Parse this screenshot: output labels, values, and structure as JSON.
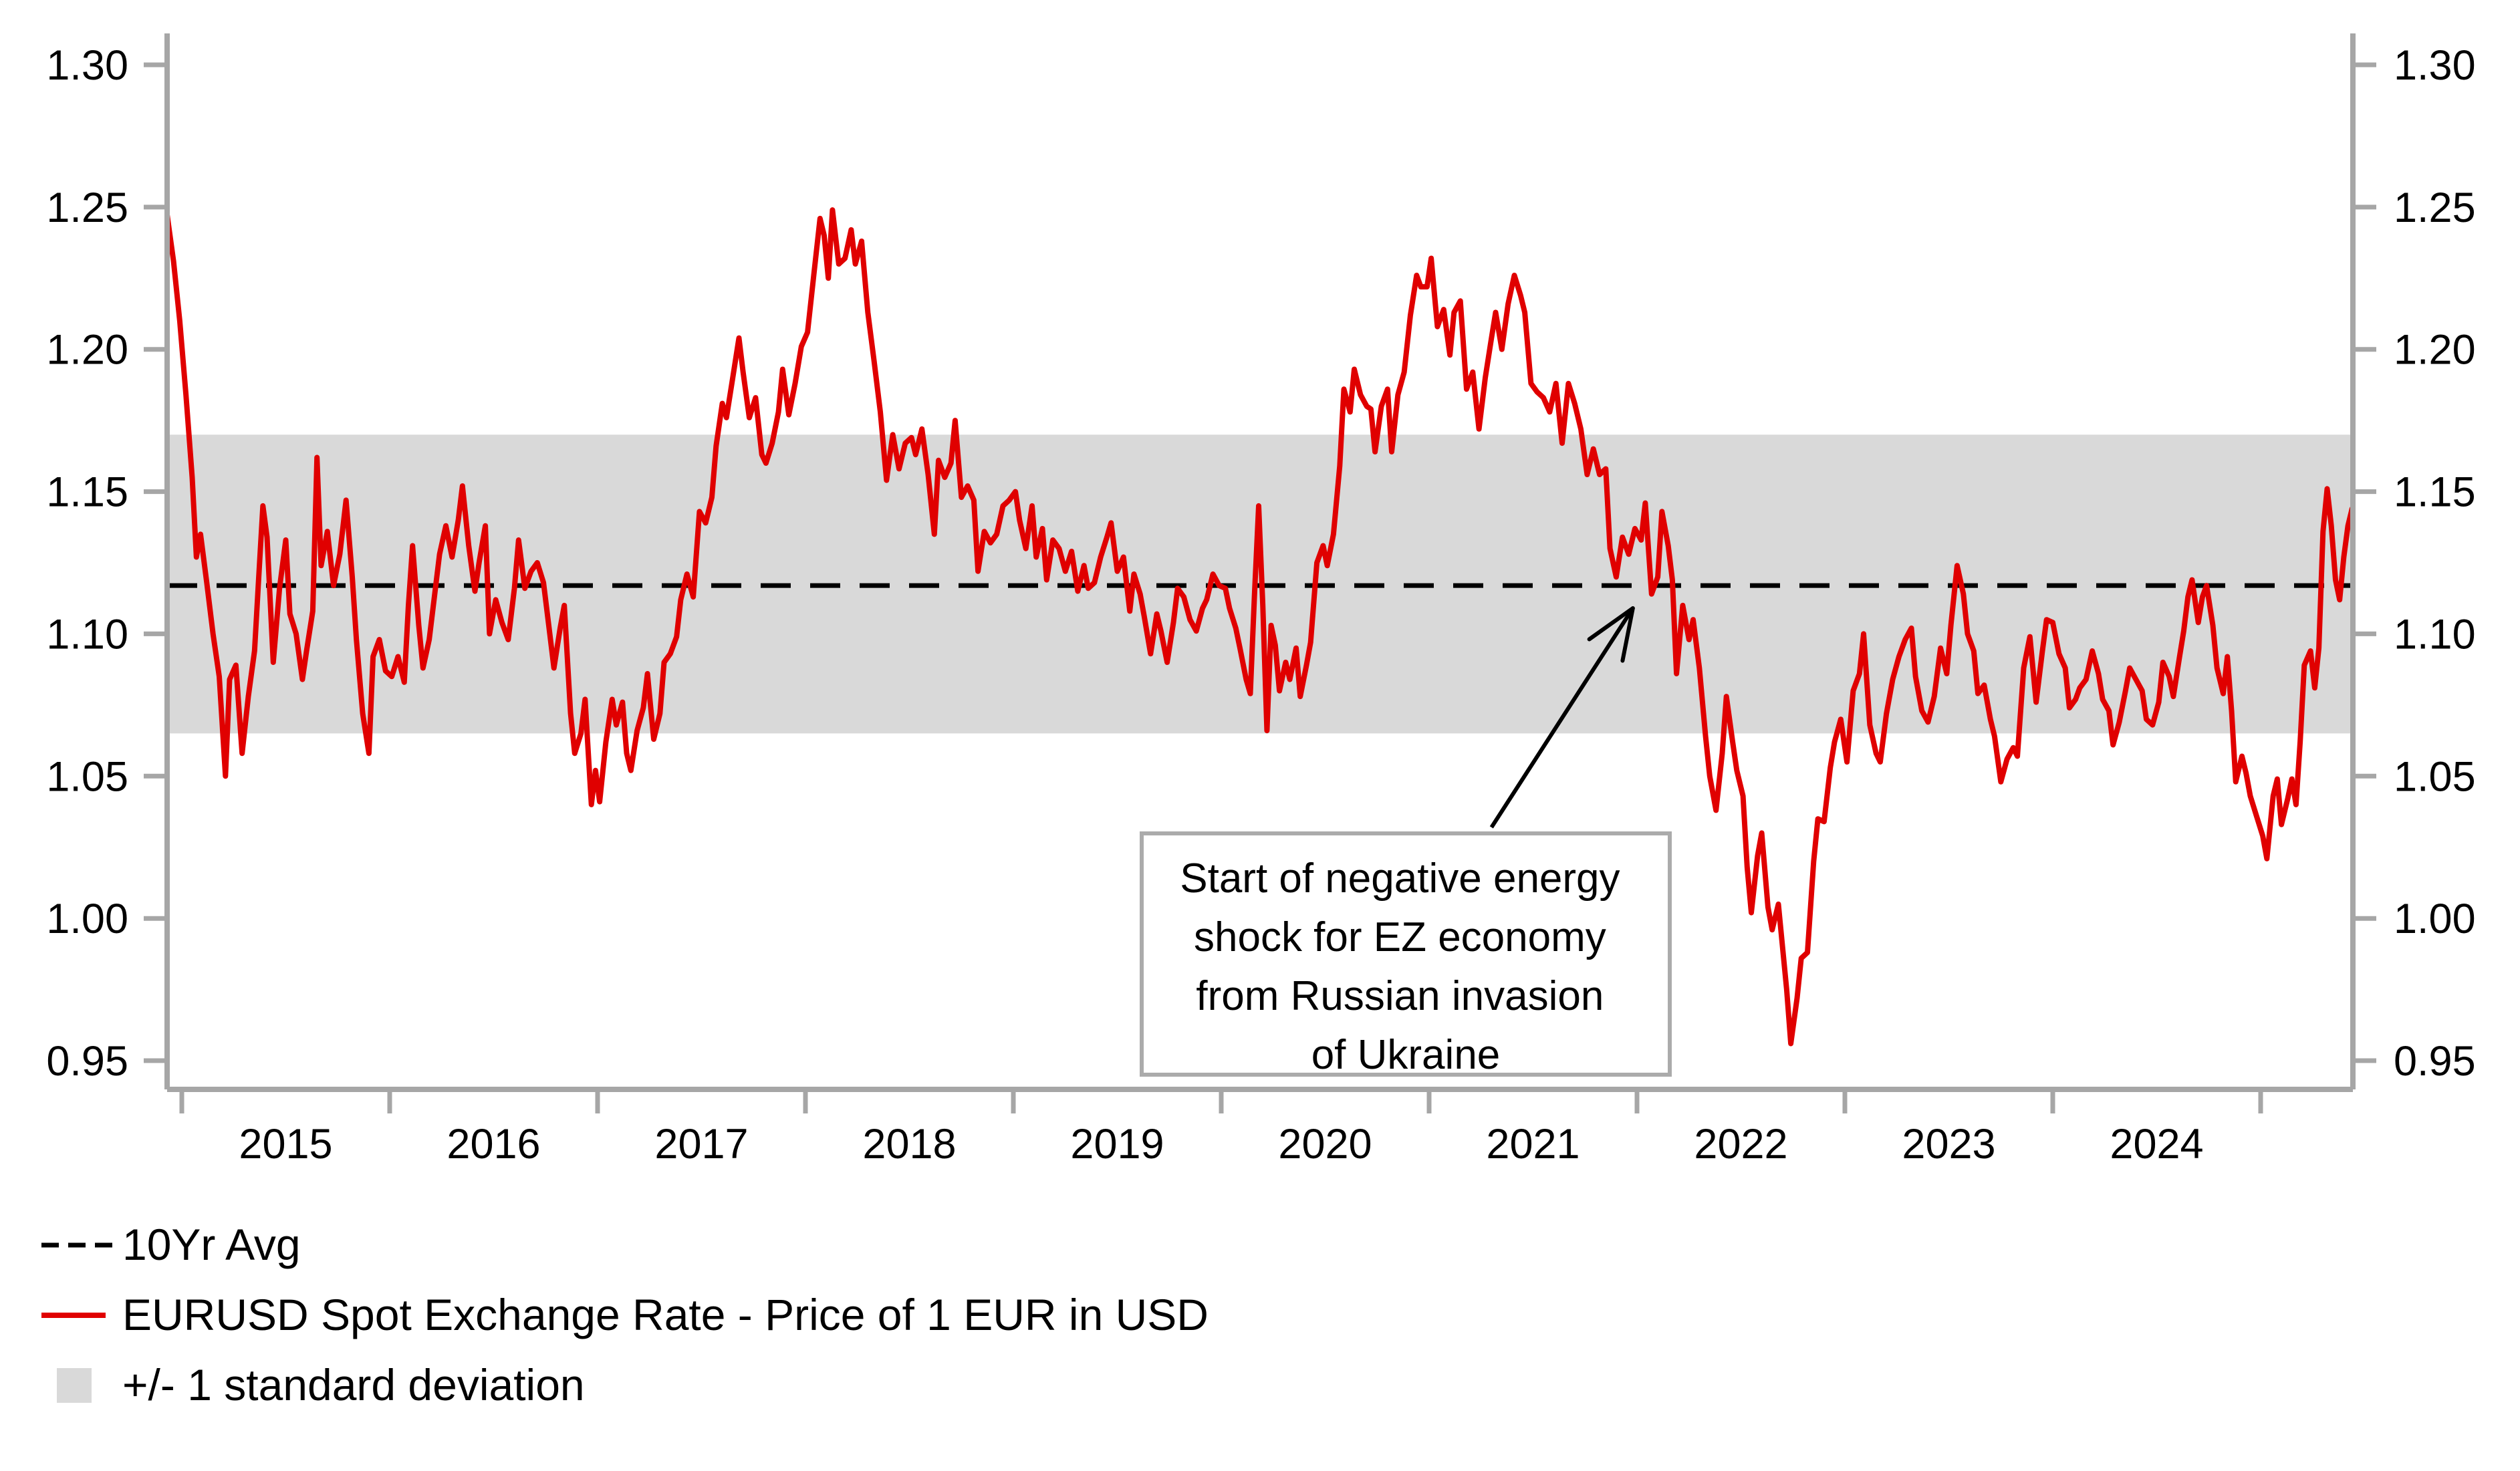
{
  "chart_data": {
    "type": "line",
    "title": "",
    "xlabel": "",
    "ylabel": "",
    "grid": false,
    "style": {
      "axis_color": "#A6A6A6",
      "text_color": "#000000",
      "background": "#FFFFFF",
      "annotation_box_border": "#ABABAB",
      "annotation_box_fill": "#FFFFFF",
      "arrow_color": "#000000"
    },
    "x_axis": {
      "range": [
        2014.93,
        2025.44
      ],
      "tick_years": [
        2015,
        2016,
        2017,
        2018,
        2019,
        2020,
        2021,
        2022,
        2023,
        2024,
        2025
      ],
      "year_labels": [
        "2015",
        "2016",
        "2017",
        "2018",
        "2019",
        "2020",
        "2021",
        "2022",
        "2023",
        "2024"
      ]
    },
    "y_axis": {
      "range": [
        0.95,
        1.3
      ],
      "ticks": [
        1.3,
        1.25,
        1.2,
        1.15,
        1.1,
        1.05,
        1.0,
        0.95
      ],
      "tick_labels": [
        "1.30",
        "1.25",
        "1.20",
        "1.15",
        "1.10",
        "1.05",
        "1.00",
        "0.95"
      ],
      "sides": "both"
    },
    "band": {
      "label": "+/- 1 standard deviation",
      "low": 1.065,
      "high": 1.17,
      "color": "#D9D9D9"
    },
    "average_line": {
      "label": "10Yr Avg",
      "value": 1.117,
      "style": "dashed",
      "color": "#000000"
    },
    "series": [
      {
        "name": "EURUSD Spot Exchange Rate - Price of 1 EUR in USD",
        "color": "#E00000",
        "x": [
          2014.93,
          2014.96,
          2014.99,
          2015.02,
          2015.05,
          2015.07,
          2015.09,
          2015.12,
          2015.15,
          2015.18,
          2015.21,
          2015.23,
          2015.26,
          2015.29,
          2015.32,
          2015.35,
          2015.37,
          2015.39,
          2015.41,
          2015.44,
          2015.47,
          2015.5,
          2015.52,
          2015.55,
          2015.58,
          2015.6,
          2015.63,
          2015.65,
          2015.67,
          2015.7,
          2015.73,
          2015.76,
          2015.79,
          2015.82,
          2015.84,
          2015.87,
          2015.9,
          2015.92,
          2015.95,
          2015.98,
          2016.01,
          2016.04,
          2016.07,
          2016.09,
          2016.11,
          2016.14,
          2016.16,
          2016.19,
          2016.21,
          2016.24,
          2016.27,
          2016.3,
          2016.33,
          2016.35,
          2016.38,
          2016.41,
          2016.43,
          2016.46,
          2016.48,
          2016.51,
          2016.54,
          2016.57,
          2016.6,
          2016.62,
          2016.65,
          2016.68,
          2016.71,
          2016.74,
          2016.77,
          2016.79,
          2016.82,
          2016.84,
          2016.87,
          2016.89,
          2016.92,
          2016.94,
          2016.97,
          2016.99,
          2017.01,
          2017.04,
          2017.07,
          2017.09,
          2017.12,
          2017.14,
          2017.16,
          2017.19,
          2017.22,
          2017.24,
          2017.27,
          2017.3,
          2017.32,
          2017.35,
          2017.38,
          2017.4,
          2017.43,
          2017.46,
          2017.49,
          2017.52,
          2017.55,
          2017.57,
          2017.6,
          2017.62,
          2017.65,
          2017.68,
          2017.7,
          2017.73,
          2017.76,
          2017.79,
          2017.81,
          2017.84,
          2017.87,
          2017.89,
          2017.92,
          2017.95,
          2017.98,
          2018.01,
          2018.04,
          2018.07,
          2018.09,
          2018.11,
          2018.13,
          2018.16,
          2018.19,
          2018.22,
          2018.24,
          2018.27,
          2018.3,
          2018.33,
          2018.36,
          2018.39,
          2018.42,
          2018.45,
          2018.48,
          2018.51,
          2018.53,
          2018.56,
          2018.59,
          2018.62,
          2018.64,
          2018.67,
          2018.7,
          2018.72,
          2018.75,
          2018.78,
          2018.81,
          2018.83,
          2018.86,
          2018.89,
          2018.92,
          2018.95,
          2018.98,
          2019.01,
          2019.03,
          2019.06,
          2019.09,
          2019.11,
          2019.14,
          2019.16,
          2019.19,
          2019.22,
          2019.25,
          2019.28,
          2019.31,
          2019.34,
          2019.36,
          2019.39,
          2019.42,
          2019.45,
          2019.47,
          2019.5,
          2019.53,
          2019.56,
          2019.58,
          2019.61,
          2019.63,
          2019.66,
          2019.69,
          2019.71,
          2019.74,
          2019.77,
          2019.79,
          2019.82,
          2019.85,
          2019.88,
          2019.91,
          2019.93,
          2019.96,
          2019.99,
          2020.02,
          2020.04,
          2020.07,
          2020.09,
          2020.12,
          2020.14,
          2020.16,
          2020.18,
          2020.2,
          2020.22,
          2020.24,
          2020.26,
          2020.28,
          2020.31,
          2020.33,
          2020.36,
          2020.38,
          2020.41,
          2020.43,
          2020.46,
          2020.49,
          2020.51,
          2020.54,
          2020.57,
          2020.59,
          2020.62,
          2020.64,
          2020.67,
          2020.7,
          2020.72,
          2020.74,
          2020.77,
          2020.8,
          2020.82,
          2020.85,
          2020.88,
          2020.91,
          2020.94,
          2020.96,
          2020.99,
          2021.01,
          2021.04,
          2021.07,
          2021.1,
          2021.12,
          2021.15,
          2021.18,
          2021.21,
          2021.24,
          2021.27,
          2021.3,
          2021.32,
          2021.35,
          2021.38,
          2021.41,
          2021.44,
          2021.46,
          2021.49,
          2021.52,
          2021.55,
          2021.58,
          2021.61,
          2021.64,
          2021.67,
          2021.7,
          2021.73,
          2021.76,
          2021.79,
          2021.82,
          2021.85,
          2021.87,
          2021.9,
          2021.93,
          2021.96,
          2021.99,
          2022.02,
          2022.04,
          2022.07,
          2022.1,
          2022.12,
          2022.15,
          2022.17,
          2022.19,
          2022.22,
          2022.25,
          2022.27,
          2022.3,
          2022.33,
          2022.35,
          2022.38,
          2022.41,
          2022.43,
          2022.46,
          2022.48,
          2022.51,
          2022.53,
          2022.55,
          2022.58,
          2022.6,
          2022.63,
          2022.65,
          2022.68,
          2022.7,
          2022.72,
          2022.74,
          2022.77,
          2022.79,
          2022.82,
          2022.85,
          2022.87,
          2022.9,
          2022.93,
          2022.95,
          2022.98,
          2023.01,
          2023.04,
          2023.07,
          2023.09,
          2023.12,
          2023.15,
          2023.17,
          2023.2,
          2023.23,
          2023.26,
          2023.29,
          2023.32,
          2023.34,
          2023.37,
          2023.4,
          2023.43,
          2023.46,
          2023.49,
          2023.51,
          2023.54,
          2023.57,
          2023.59,
          2023.62,
          2023.64,
          2023.67,
          2023.7,
          2023.72,
          2023.75,
          2023.78,
          2023.81,
          2023.83,
          2023.86,
          2023.89,
          2023.92,
          2023.95,
          2023.97,
          2024.0,
          2024.03,
          2024.06,
          2024.08,
          2024.11,
          2024.13,
          2024.16,
          2024.19,
          2024.22,
          2024.24,
          2024.27,
          2024.29,
          2024.32,
          2024.35,
          2024.37,
          2024.4,
          2024.43,
          2024.45,
          2024.48,
          2024.51,
          2024.53,
          2024.56,
          2024.58,
          2024.61,
          2024.63,
          2024.65,
          2024.67,
          2024.7,
          2024.72,
          2024.74,
          2024.77,
          2024.79,
          2024.82,
          2024.84,
          2024.86,
          2024.88,
          2024.91,
          2024.93,
          2024.95,
          2024.98,
          2025.01,
          2025.03,
          2025.06,
          2025.08,
          2025.1,
          2025.13,
          2025.15,
          2025.17,
          2025.19,
          2025.21,
          2025.24,
          2025.26,
          2025.28,
          2025.3,
          2025.32,
          2025.34,
          2025.36,
          2025.38,
          2025.4,
          2025.42,
          2025.44
        ],
        "y": [
          1.247,
          1.231,
          1.21,
          1.184,
          1.155,
          1.127,
          1.135,
          1.118,
          1.1,
          1.085,
          1.05,
          1.084,
          1.089,
          1.058,
          1.078,
          1.094,
          1.12,
          1.145,
          1.134,
          1.09,
          1.116,
          1.133,
          1.107,
          1.1,
          1.084,
          1.094,
          1.108,
          1.162,
          1.124,
          1.136,
          1.117,
          1.128,
          1.147,
          1.12,
          1.098,
          1.072,
          1.058,
          1.092,
          1.098,
          1.087,
          1.085,
          1.092,
          1.083,
          1.11,
          1.131,
          1.103,
          1.088,
          1.098,
          1.11,
          1.128,
          1.138,
          1.127,
          1.14,
          1.152,
          1.131,
          1.115,
          1.125,
          1.138,
          1.1,
          1.112,
          1.104,
          1.098,
          1.116,
          1.133,
          1.116,
          1.122,
          1.125,
          1.118,
          1.1,
          1.088,
          1.102,
          1.11,
          1.072,
          1.058,
          1.065,
          1.077,
          1.04,
          1.052,
          1.041,
          1.062,
          1.077,
          1.068,
          1.076,
          1.058,
          1.052,
          1.066,
          1.074,
          1.086,
          1.063,
          1.072,
          1.09,
          1.093,
          1.099,
          1.112,
          1.121,
          1.113,
          1.143,
          1.139,
          1.148,
          1.166,
          1.181,
          1.176,
          1.19,
          1.204,
          1.192,
          1.176,
          1.183,
          1.163,
          1.16,
          1.167,
          1.178,
          1.193,
          1.177,
          1.188,
          1.201,
          1.206,
          1.226,
          1.246,
          1.24,
          1.225,
          1.249,
          1.23,
          1.232,
          1.242,
          1.23,
          1.238,
          1.213,
          1.196,
          1.178,
          1.154,
          1.17,
          1.158,
          1.167,
          1.169,
          1.163,
          1.172,
          1.156,
          1.135,
          1.161,
          1.155,
          1.16,
          1.175,
          1.148,
          1.152,
          1.147,
          1.122,
          1.136,
          1.132,
          1.135,
          1.145,
          1.147,
          1.15,
          1.14,
          1.13,
          1.145,
          1.127,
          1.137,
          1.119,
          1.133,
          1.13,
          1.122,
          1.129,
          1.115,
          1.124,
          1.116,
          1.118,
          1.127,
          1.134,
          1.139,
          1.122,
          1.127,
          1.108,
          1.121,
          1.114,
          1.106,
          1.093,
          1.107,
          1.101,
          1.09,
          1.104,
          1.116,
          1.113,
          1.105,
          1.101,
          1.109,
          1.112,
          1.121,
          1.117,
          1.116,
          1.109,
          1.102,
          1.095,
          1.084,
          1.079,
          1.114,
          1.145,
          1.11,
          1.066,
          1.103,
          1.096,
          1.08,
          1.09,
          1.084,
          1.095,
          1.078,
          1.089,
          1.097,
          1.125,
          1.131,
          1.124,
          1.135,
          1.159,
          1.186,
          1.178,
          1.193,
          1.184,
          1.18,
          1.179,
          1.164,
          1.18,
          1.186,
          1.164,
          1.184,
          1.192,
          1.212,
          1.226,
          1.222,
          1.222,
          1.232,
          1.208,
          1.214,
          1.198,
          1.213,
          1.217,
          1.186,
          1.192,
          1.172,
          1.19,
          1.204,
          1.213,
          1.2,
          1.216,
          1.226,
          1.219,
          1.213,
          1.188,
          1.185,
          1.183,
          1.178,
          1.188,
          1.167,
          1.188,
          1.181,
          1.172,
          1.156,
          1.165,
          1.156,
          1.158,
          1.13,
          1.12,
          1.134,
          1.128,
          1.137,
          1.133,
          1.146,
          1.114,
          1.12,
          1.143,
          1.131,
          1.119,
          1.086,
          1.11,
          1.098,
          1.105,
          1.088,
          1.064,
          1.05,
          1.038,
          1.058,
          1.078,
          1.062,
          1.052,
          1.043,
          1.018,
          1.002,
          1.022,
          1.03,
          1.004,
          0.996,
          1.005,
          0.99,
          0.975,
          0.956,
          0.972,
          0.986,
          0.988,
          1.02,
          1.035,
          1.034,
          1.053,
          1.062,
          1.07,
          1.055,
          1.08,
          1.086,
          1.1,
          1.068,
          1.058,
          1.055,
          1.072,
          1.084,
          1.092,
          1.098,
          1.102,
          1.085,
          1.073,
          1.069,
          1.078,
          1.095,
          1.086,
          1.103,
          1.124,
          1.114,
          1.1,
          1.094,
          1.079,
          1.082,
          1.07,
          1.064,
          1.048,
          1.056,
          1.06,
          1.057,
          1.088,
          1.099,
          1.076,
          1.094,
          1.105,
          1.104,
          1.093,
          1.088,
          1.074,
          1.077,
          1.081,
          1.084,
          1.094,
          1.086,
          1.077,
          1.073,
          1.061,
          1.069,
          1.08,
          1.088,
          1.084,
          1.08,
          1.07,
          1.068,
          1.076,
          1.09,
          1.085,
          1.078,
          1.092,
          1.101,
          1.113,
          1.119,
          1.104,
          1.113,
          1.117,
          1.103,
          1.088,
          1.079,
          1.092,
          1.073,
          1.048,
          1.057,
          1.051,
          1.043,
          1.036,
          1.029,
          1.021,
          1.043,
          1.049,
          1.033,
          1.042,
          1.049,
          1.04,
          1.062,
          1.089,
          1.094,
          1.081,
          1.095,
          1.136,
          1.151,
          1.138,
          1.119,
          1.112,
          1.127,
          1.138,
          1.144
        ]
      }
    ],
    "annotation": {
      "lines": [
        "Start of negative energy",
        "shock for EZ economy",
        "from Russian invasion",
        "of Ukraine"
      ],
      "arrow": {
        "from": {
          "year": 2021.3,
          "value": 1.032
        },
        "to": {
          "year": 2021.98,
          "value": 1.109
        }
      }
    },
    "legend": [
      {
        "swatch": "dashed-line",
        "color": "#000000",
        "label": "10Yr Avg"
      },
      {
        "swatch": "line",
        "color": "#E00000",
        "label": "EURUSD Spot Exchange Rate - Price of 1 EUR in USD"
      },
      {
        "swatch": "box",
        "color": "#D9D9D9",
        "label": "+/- 1 standard deviation"
      }
    ]
  }
}
